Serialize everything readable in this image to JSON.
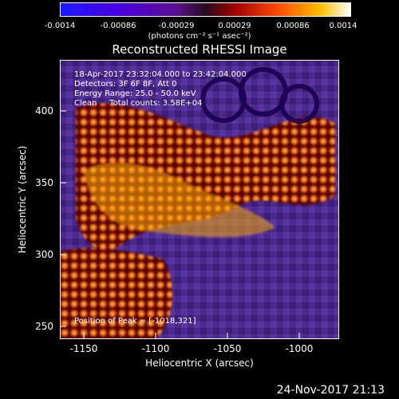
{
  "colorbar": {
    "ticks": [
      "-0.0014",
      "-0.00086",
      "-0.00029",
      "0.00029",
      "0.00086",
      "0.0014"
    ],
    "units": "(photons cm⁻² s⁻¹ asec⁻²)"
  },
  "title": "Reconstructed RHESSI Image",
  "info": {
    "line1": "18-Apr-2017 23:32:04.000 to 23:42:04.000",
    "line2": "Detectors: 3F 6F 8F, Att 0",
    "line3": "Energy Range: 25.0 - 50.0 keV",
    "line4": "Clean     Total counts: 3.58E+04",
    "peak": "Position of Peak = [-1018,321]"
  },
  "axes": {
    "xlabel": "Heliocentric X (arcsec)",
    "ylabel": "Heliocentric Y (arcsec)",
    "xticks": [
      "-1150",
      "-1100",
      "-1050",
      "-1000"
    ],
    "yticks": [
      "400",
      "350",
      "300",
      "250"
    ]
  },
  "timestamp": "24-Nov-2017 21:13"
}
